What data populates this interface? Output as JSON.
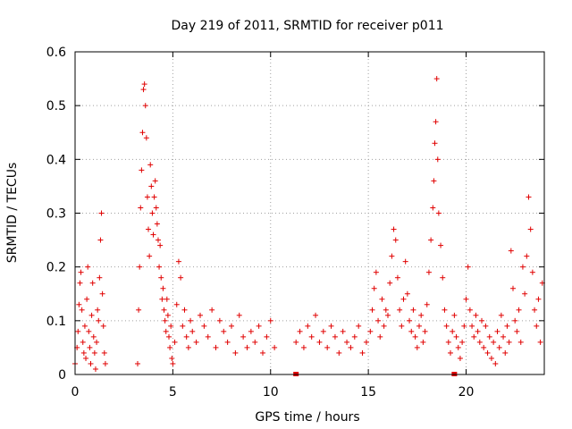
{
  "chart_data": {
    "type": "scatter",
    "title": "Day 219 of 2011, SRMTID for receiver p011",
    "xlabel": "GPS time / hours",
    "ylabel": "SRMTID / TECUs",
    "xlim": [
      0,
      24
    ],
    "ylim": [
      0,
      0.6
    ],
    "x_ticks": [
      0,
      5,
      10,
      15,
      20
    ],
    "x_tick_labels": [
      "0",
      "5",
      "10",
      "15",
      "20"
    ],
    "y_ticks": [
      0,
      0.1,
      0.2,
      0.3,
      0.4,
      0.5,
      0.6
    ],
    "y_tick_labels": [
      "0",
      "0.1",
      "0.2",
      "0.3",
      "0.4",
      "0.5",
      "0.6"
    ],
    "grid": true,
    "marker": "+",
    "color": "#e00000",
    "series": [
      {
        "name": "SRMTID",
        "x": [
          0.0,
          0.1,
          0.15,
          0.2,
          0.25,
          0.3,
          0.35,
          0.4,
          0.45,
          0.5,
          0.55,
          0.6,
          0.65,
          0.7,
          0.75,
          0.8,
          0.85,
          0.9,
          0.95,
          1.0,
          1.05,
          1.1,
          1.15,
          1.2,
          1.25,
          1.3,
          1.35,
          1.4,
          1.45,
          1.5,
          1.55,
          3.2,
          3.25,
          3.3,
          3.35,
          3.4,
          3.45,
          3.5,
          3.55,
          3.6,
          3.65,
          3.7,
          3.75,
          3.8,
          3.85,
          3.9,
          3.95,
          4.0,
          4.05,
          4.1,
          4.15,
          4.2,
          4.25,
          4.3,
          4.35,
          4.4,
          4.45,
          4.5,
          4.55,
          4.6,
          4.65,
          4.7,
          4.75,
          4.8,
          4.85,
          4.9,
          4.95,
          5.0,
          5.1,
          5.2,
          5.3,
          5.4,
          5.5,
          5.6,
          5.7,
          5.8,
          5.9,
          6.0,
          6.2,
          6.4,
          6.6,
          6.8,
          7.0,
          7.2,
          7.4,
          7.6,
          7.8,
          8.0,
          8.2,
          8.4,
          8.6,
          8.8,
          9.0,
          9.2,
          9.4,
          9.6,
          9.8,
          10.0,
          10.2,
          11.3,
          11.5,
          11.7,
          11.9,
          12.1,
          12.3,
          12.5,
          12.7,
          12.9,
          13.1,
          13.3,
          13.5,
          13.7,
          13.9,
          14.1,
          14.3,
          14.5,
          14.7,
          14.9,
          15.1,
          15.2,
          15.3,
          15.4,
          15.5,
          15.6,
          15.7,
          15.8,
          15.9,
          16.0,
          16.1,
          16.2,
          16.3,
          16.4,
          16.5,
          16.6,
          16.7,
          16.8,
          16.9,
          17.0,
          17.1,
          17.2,
          17.3,
          17.4,
          17.5,
          17.6,
          17.7,
          17.8,
          17.9,
          18.0,
          18.1,
          18.2,
          18.3,
          18.35,
          18.4,
          18.45,
          18.5,
          18.55,
          18.6,
          18.7,
          18.8,
          18.9,
          19.0,
          19.1,
          19.2,
          19.3,
          19.4,
          19.5,
          19.6,
          19.7,
          19.8,
          19.9,
          20.0,
          20.1,
          20.2,
          20.3,
          20.4,
          20.5,
          20.6,
          20.7,
          20.8,
          20.9,
          21.0,
          21.1,
          21.2,
          21.3,
          21.4,
          21.5,
          21.6,
          21.7,
          21.8,
          21.9,
          22.0,
          22.1,
          22.2,
          22.3,
          22.4,
          22.5,
          22.6,
          22.7,
          22.8,
          22.9,
          23.0,
          23.1,
          23.2,
          23.3,
          23.4,
          23.5,
          23.6,
          23.7,
          23.8,
          23.9
        ],
        "y": [
          0.02,
          0.05,
          0.08,
          0.13,
          0.17,
          0.19,
          0.12,
          0.06,
          0.04,
          0.09,
          0.03,
          0.14,
          0.2,
          0.08,
          0.05,
          0.02,
          0.11,
          0.17,
          0.07,
          0.04,
          0.01,
          0.06,
          0.12,
          0.1,
          0.18,
          0.25,
          0.3,
          0.15,
          0.09,
          0.04,
          0.02,
          0.02,
          0.12,
          0.2,
          0.31,
          0.38,
          0.45,
          0.53,
          0.54,
          0.5,
          0.44,
          0.33,
          0.27,
          0.22,
          0.39,
          0.35,
          0.3,
          0.26,
          0.33,
          0.36,
          0.31,
          0.28,
          0.25,
          0.2,
          0.24,
          0.18,
          0.14,
          0.16,
          0.12,
          0.1,
          0.08,
          0.14,
          0.11,
          0.07,
          0.05,
          0.09,
          0.03,
          0.02,
          0.06,
          0.13,
          0.21,
          0.18,
          0.09,
          0.12,
          0.07,
          0.05,
          0.1,
          0.08,
          0.06,
          0.11,
          0.09,
          0.07,
          0.12,
          0.05,
          0.1,
          0.08,
          0.06,
          0.09,
          0.04,
          0.11,
          0.07,
          0.05,
          0.08,
          0.06,
          0.09,
          0.04,
          0.07,
          0.1,
          0.05,
          0.06,
          0.08,
          0.05,
          0.09,
          0.07,
          0.11,
          0.06,
          0.08,
          0.05,
          0.09,
          0.07,
          0.04,
          0.08,
          0.06,
          0.05,
          0.07,
          0.09,
          0.04,
          0.06,
          0.08,
          0.12,
          0.16,
          0.19,
          0.1,
          0.07,
          0.14,
          0.09,
          0.12,
          0.11,
          0.17,
          0.22,
          0.27,
          0.25,
          0.18,
          0.12,
          0.09,
          0.14,
          0.21,
          0.15,
          0.1,
          0.08,
          0.12,
          0.07,
          0.05,
          0.09,
          0.11,
          0.06,
          0.08,
          0.13,
          0.19,
          0.25,
          0.31,
          0.36,
          0.43,
          0.47,
          0.55,
          0.4,
          0.3,
          0.24,
          0.18,
          0.12,
          0.09,
          0.06,
          0.04,
          0.08,
          0.11,
          0.07,
          0.05,
          0.03,
          0.06,
          0.09,
          0.14,
          0.2,
          0.12,
          0.09,
          0.07,
          0.11,
          0.08,
          0.06,
          0.1,
          0.05,
          0.09,
          0.04,
          0.07,
          0.03,
          0.06,
          0.02,
          0.08,
          0.05,
          0.11,
          0.07,
          0.04,
          0.09,
          0.06,
          0.23,
          0.16,
          0.1,
          0.08,
          0.12,
          0.06,
          0.2,
          0.15,
          0.22,
          0.33,
          0.27,
          0.19,
          0.12,
          0.09,
          0.14,
          0.06,
          0.17
        ]
      }
    ],
    "zero_markers": [
      11.3,
      19.4
    ]
  }
}
